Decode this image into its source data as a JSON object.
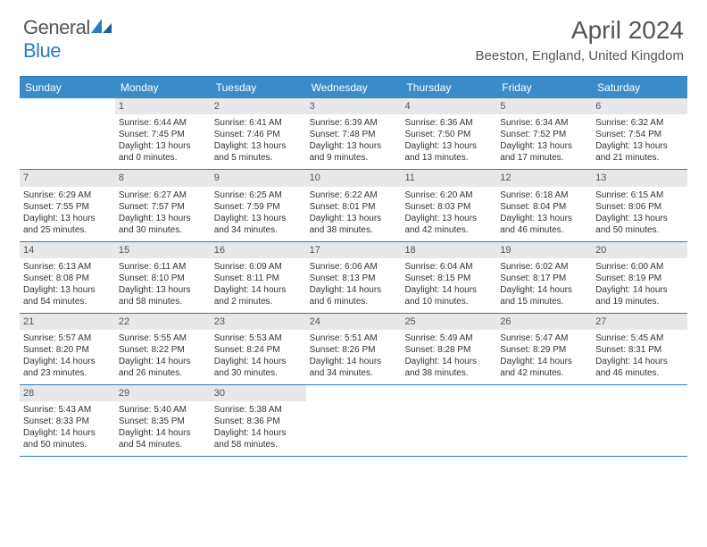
{
  "logo": {
    "word1": "General",
    "word2": "Blue"
  },
  "title": "April 2024",
  "location": "Beeston, England, United Kingdom",
  "colors": {
    "header_bg": "#3b8bc9",
    "border": "#2a7cc0",
    "daynum_bg": "#e8e8e8",
    "text": "#333333",
    "muted": "#555555"
  },
  "day_names": [
    "Sunday",
    "Monday",
    "Tuesday",
    "Wednesday",
    "Thursday",
    "Friday",
    "Saturday"
  ],
  "weeks": [
    [
      {
        "n": "",
        "sr": "",
        "ss": "",
        "d1": "",
        "d2": ""
      },
      {
        "n": "1",
        "sr": "Sunrise: 6:44 AM",
        "ss": "Sunset: 7:45 PM",
        "d1": "Daylight: 13 hours",
        "d2": "and 0 minutes."
      },
      {
        "n": "2",
        "sr": "Sunrise: 6:41 AM",
        "ss": "Sunset: 7:46 PM",
        "d1": "Daylight: 13 hours",
        "d2": "and 5 minutes."
      },
      {
        "n": "3",
        "sr": "Sunrise: 6:39 AM",
        "ss": "Sunset: 7:48 PM",
        "d1": "Daylight: 13 hours",
        "d2": "and 9 minutes."
      },
      {
        "n": "4",
        "sr": "Sunrise: 6:36 AM",
        "ss": "Sunset: 7:50 PM",
        "d1": "Daylight: 13 hours",
        "d2": "and 13 minutes."
      },
      {
        "n": "5",
        "sr": "Sunrise: 6:34 AM",
        "ss": "Sunset: 7:52 PM",
        "d1": "Daylight: 13 hours",
        "d2": "and 17 minutes."
      },
      {
        "n": "6",
        "sr": "Sunrise: 6:32 AM",
        "ss": "Sunset: 7:54 PM",
        "d1": "Daylight: 13 hours",
        "d2": "and 21 minutes."
      }
    ],
    [
      {
        "n": "7",
        "sr": "Sunrise: 6:29 AM",
        "ss": "Sunset: 7:55 PM",
        "d1": "Daylight: 13 hours",
        "d2": "and 25 minutes."
      },
      {
        "n": "8",
        "sr": "Sunrise: 6:27 AM",
        "ss": "Sunset: 7:57 PM",
        "d1": "Daylight: 13 hours",
        "d2": "and 30 minutes."
      },
      {
        "n": "9",
        "sr": "Sunrise: 6:25 AM",
        "ss": "Sunset: 7:59 PM",
        "d1": "Daylight: 13 hours",
        "d2": "and 34 minutes."
      },
      {
        "n": "10",
        "sr": "Sunrise: 6:22 AM",
        "ss": "Sunset: 8:01 PM",
        "d1": "Daylight: 13 hours",
        "d2": "and 38 minutes."
      },
      {
        "n": "11",
        "sr": "Sunrise: 6:20 AM",
        "ss": "Sunset: 8:03 PM",
        "d1": "Daylight: 13 hours",
        "d2": "and 42 minutes."
      },
      {
        "n": "12",
        "sr": "Sunrise: 6:18 AM",
        "ss": "Sunset: 8:04 PM",
        "d1": "Daylight: 13 hours",
        "d2": "and 46 minutes."
      },
      {
        "n": "13",
        "sr": "Sunrise: 6:15 AM",
        "ss": "Sunset: 8:06 PM",
        "d1": "Daylight: 13 hours",
        "d2": "and 50 minutes."
      }
    ],
    [
      {
        "n": "14",
        "sr": "Sunrise: 6:13 AM",
        "ss": "Sunset: 8:08 PM",
        "d1": "Daylight: 13 hours",
        "d2": "and 54 minutes."
      },
      {
        "n": "15",
        "sr": "Sunrise: 6:11 AM",
        "ss": "Sunset: 8:10 PM",
        "d1": "Daylight: 13 hours",
        "d2": "and 58 minutes."
      },
      {
        "n": "16",
        "sr": "Sunrise: 6:09 AM",
        "ss": "Sunset: 8:11 PM",
        "d1": "Daylight: 14 hours",
        "d2": "and 2 minutes."
      },
      {
        "n": "17",
        "sr": "Sunrise: 6:06 AM",
        "ss": "Sunset: 8:13 PM",
        "d1": "Daylight: 14 hours",
        "d2": "and 6 minutes."
      },
      {
        "n": "18",
        "sr": "Sunrise: 6:04 AM",
        "ss": "Sunset: 8:15 PM",
        "d1": "Daylight: 14 hours",
        "d2": "and 10 minutes."
      },
      {
        "n": "19",
        "sr": "Sunrise: 6:02 AM",
        "ss": "Sunset: 8:17 PM",
        "d1": "Daylight: 14 hours",
        "d2": "and 15 minutes."
      },
      {
        "n": "20",
        "sr": "Sunrise: 6:00 AM",
        "ss": "Sunset: 8:19 PM",
        "d1": "Daylight: 14 hours",
        "d2": "and 19 minutes."
      }
    ],
    [
      {
        "n": "21",
        "sr": "Sunrise: 5:57 AM",
        "ss": "Sunset: 8:20 PM",
        "d1": "Daylight: 14 hours",
        "d2": "and 23 minutes."
      },
      {
        "n": "22",
        "sr": "Sunrise: 5:55 AM",
        "ss": "Sunset: 8:22 PM",
        "d1": "Daylight: 14 hours",
        "d2": "and 26 minutes."
      },
      {
        "n": "23",
        "sr": "Sunrise: 5:53 AM",
        "ss": "Sunset: 8:24 PM",
        "d1": "Daylight: 14 hours",
        "d2": "and 30 minutes."
      },
      {
        "n": "24",
        "sr": "Sunrise: 5:51 AM",
        "ss": "Sunset: 8:26 PM",
        "d1": "Daylight: 14 hours",
        "d2": "and 34 minutes."
      },
      {
        "n": "25",
        "sr": "Sunrise: 5:49 AM",
        "ss": "Sunset: 8:28 PM",
        "d1": "Daylight: 14 hours",
        "d2": "and 38 minutes."
      },
      {
        "n": "26",
        "sr": "Sunrise: 5:47 AM",
        "ss": "Sunset: 8:29 PM",
        "d1": "Daylight: 14 hours",
        "d2": "and 42 minutes."
      },
      {
        "n": "27",
        "sr": "Sunrise: 5:45 AM",
        "ss": "Sunset: 8:31 PM",
        "d1": "Daylight: 14 hours",
        "d2": "and 46 minutes."
      }
    ],
    [
      {
        "n": "28",
        "sr": "Sunrise: 5:43 AM",
        "ss": "Sunset: 8:33 PM",
        "d1": "Daylight: 14 hours",
        "d2": "and 50 minutes."
      },
      {
        "n": "29",
        "sr": "Sunrise: 5:40 AM",
        "ss": "Sunset: 8:35 PM",
        "d1": "Daylight: 14 hours",
        "d2": "and 54 minutes."
      },
      {
        "n": "30",
        "sr": "Sunrise: 5:38 AM",
        "ss": "Sunset: 8:36 PM",
        "d1": "Daylight: 14 hours",
        "d2": "and 58 minutes."
      },
      {
        "n": "",
        "sr": "",
        "ss": "",
        "d1": "",
        "d2": ""
      },
      {
        "n": "",
        "sr": "",
        "ss": "",
        "d1": "",
        "d2": ""
      },
      {
        "n": "",
        "sr": "",
        "ss": "",
        "d1": "",
        "d2": ""
      },
      {
        "n": "",
        "sr": "",
        "ss": "",
        "d1": "",
        "d2": ""
      }
    ]
  ]
}
